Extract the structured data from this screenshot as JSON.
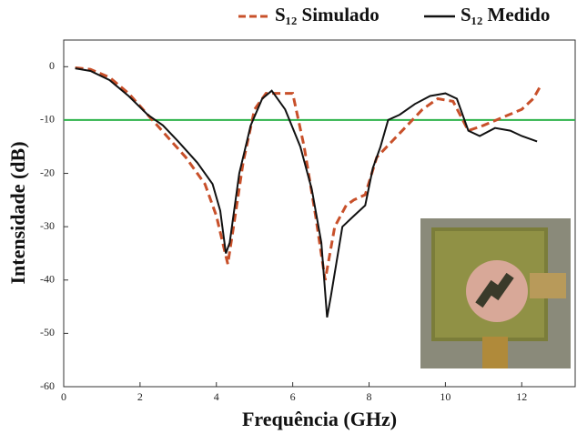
{
  "chart_data": {
    "type": "line",
    "x_label": "Frequência (GHz)",
    "y_label": "Intensidade (dB)",
    "xlim": [
      0,
      13.4
    ],
    "ylim": [
      -60,
      5
    ],
    "xticks": [
      0,
      2,
      4,
      6,
      8,
      10,
      12
    ],
    "yticks": [
      0,
      -10,
      -20,
      -30,
      -40,
      -50,
      -60
    ],
    "reference_line": {
      "value": -10,
      "color": "#2db34a"
    },
    "series": [
      {
        "name": "S₁₂ Simulado",
        "color": "#c8502a",
        "dashed": true,
        "x": [
          0.3,
          0.7,
          1.2,
          1.7,
          2.2,
          2.7,
          3.2,
          3.7,
          4.0,
          4.2,
          4.3,
          4.45,
          4.7,
          5.0,
          5.3,
          5.6,
          6.0,
          6.3,
          6.6,
          6.85,
          7.1,
          7.4,
          7.6,
          7.9,
          8.2,
          8.6,
          9.0,
          9.4,
          9.8,
          10.2,
          10.6,
          11.0,
          11.5,
          12.0,
          12.3,
          12.5
        ],
        "values": [
          -0.2,
          -0.5,
          -2,
          -5,
          -9,
          -13,
          -17,
          -22,
          -28,
          -34,
          -37,
          -30,
          -18,
          -8,
          -5,
          -5,
          -5,
          -15,
          -28,
          -40,
          -30,
          -26,
          -25,
          -24,
          -17,
          -14,
          -11,
          -8,
          -6,
          -6.5,
          -12,
          -11,
          -9.5,
          -8,
          -6,
          -3.5
        ]
      },
      {
        "name": "S₁₂ Medido",
        "color": "#111111",
        "dashed": false,
        "x": [
          0.3,
          0.7,
          1.2,
          1.7,
          2.2,
          2.6,
          3.0,
          3.5,
          3.9,
          4.1,
          4.25,
          4.35,
          4.6,
          4.9,
          5.2,
          5.45,
          5.8,
          6.2,
          6.5,
          6.75,
          6.9,
          7.0,
          7.3,
          7.6,
          7.9,
          8.1,
          8.3,
          8.5,
          8.8,
          9.2,
          9.6,
          10.0,
          10.3,
          10.6,
          10.9,
          11.3,
          11.7,
          12.0,
          12.4
        ],
        "values": [
          -0.3,
          -0.8,
          -2.5,
          -5.5,
          -9,
          -11,
          -14,
          -18,
          -22,
          -27,
          -35,
          -33,
          -20,
          -11,
          -6,
          -4.5,
          -8,
          -15,
          -23,
          -33,
          -47,
          -43,
          -30,
          -28,
          -26,
          -19,
          -15,
          -10,
          -9,
          -7,
          -5.5,
          -5,
          -6,
          -12,
          -13,
          -11.5,
          -12,
          -13,
          -14
        ]
      }
    ]
  }
}
